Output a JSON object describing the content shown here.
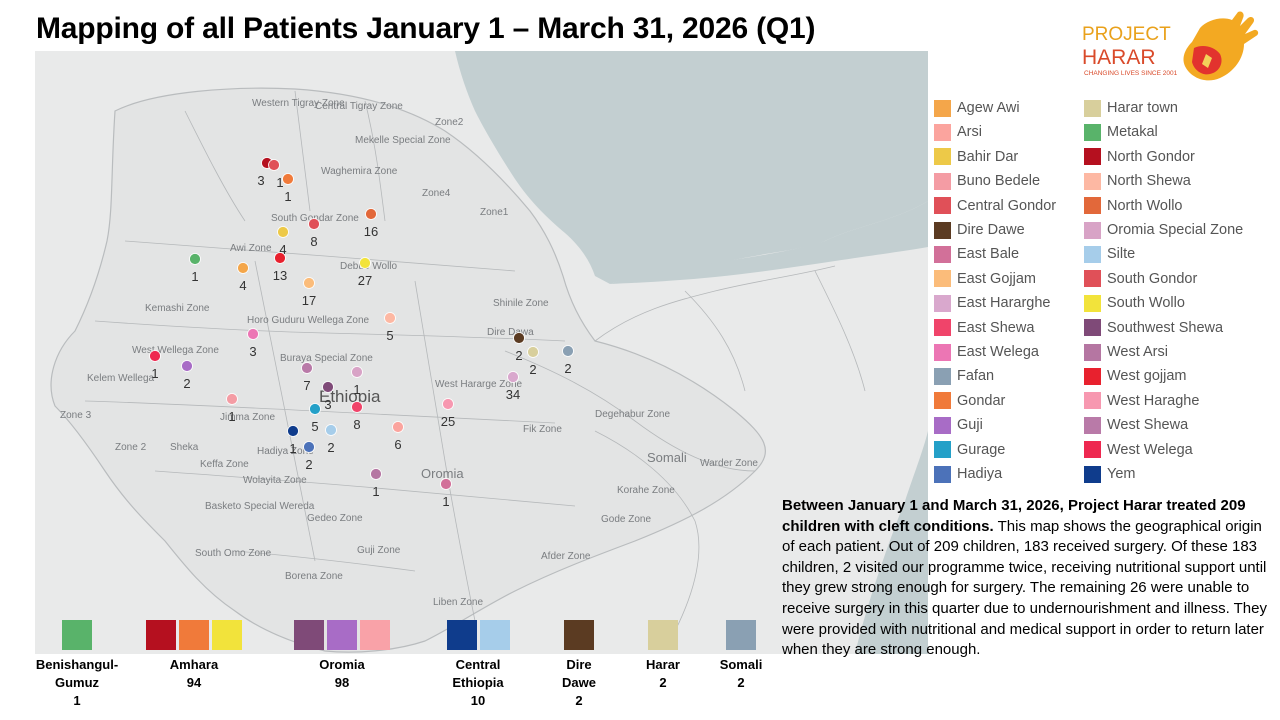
{
  "title": "Mapping of all Patients January 1 – March 31, 2026 (Q1)",
  "logo": {
    "line1": "PROJECT",
    "line2": "HARAR",
    "tagline": "CHANGING LIVES SINCE 2001"
  },
  "map": {
    "country_label": "Ethiopia",
    "region_labels": [
      "Western Tigray Zone",
      "Central Tigray Zone",
      "Zone2",
      "Mekelle Special Zone",
      "Waghemira Zone",
      "South Gondar Zone",
      "Awi Zone",
      "Debub Wollo",
      "Zone4",
      "Zone1",
      "Kemashi Zone",
      "Shinile Zone",
      "Dire Dawa",
      "Horo Guduru Wellega Zone",
      "West Wellega Zone",
      "Kelem Wellega",
      "Buraya Special Zone",
      "West Hararge Zone",
      "Zone 3",
      "Jimma Zone",
      "Zone 2",
      "Sheka",
      "Keffa Zone",
      "Hadiya Zone",
      "Wolayita Zone",
      "Fik Zone",
      "Degehabur Zone",
      "Somali",
      "Warder Zone",
      "Oromia",
      "Korahe Zone",
      "Gode Zone",
      "Basketo Special Wereda",
      "Gedeo Zone",
      "South Omo Zone",
      "Guji Zone",
      "Afder Zone",
      "Borena Zone",
      "Liben Zone"
    ],
    "markers": [
      {
        "zone": "North Gondor",
        "count": "3",
        "color": "#b5101f"
      },
      {
        "zone": "South Gondor",
        "count": "1",
        "color": "#e05058"
      },
      {
        "zone": "Gondar",
        "count": "1",
        "color": "#f07a3a"
      },
      {
        "zone": "Central Gondor",
        "count": "8",
        "color": "#e05058"
      },
      {
        "zone": "North Wollo",
        "count": "16",
        "color": "#e2683a"
      },
      {
        "zone": "Bahir Dar",
        "count": "4",
        "color": "#edc948"
      },
      {
        "zone": "West gojjam",
        "count": "13",
        "color": "#e8212e"
      },
      {
        "zone": "South Wollo",
        "count": "27",
        "color": "#f2e33b"
      },
      {
        "zone": "Metakal",
        "count": "1",
        "color": "#59b36a"
      },
      {
        "zone": "Agew Awi",
        "count": "4",
        "color": "#f4a64a"
      },
      {
        "zone": "East Gojjam",
        "count": "17",
        "color": "#fbbc7a"
      },
      {
        "zone": "North Shewa",
        "count": "5",
        "color": "#fdb8a3"
      },
      {
        "zone": "East Welega",
        "count": "3",
        "color": "#ec76b4"
      },
      {
        "zone": "West Welega",
        "count": "1",
        "color": "#ee2850"
      },
      {
        "zone": "Guji",
        "count": "2",
        "color": "#a86cc6"
      },
      {
        "zone": "West Shewa",
        "count": "7",
        "color": "#b97aa8"
      },
      {
        "zone": "Oromia Special Zone",
        "count": "1",
        "color": "#d8a3c6"
      },
      {
        "zone": "Southwest Shewa",
        "count": "3",
        "color": "#7f4a78"
      },
      {
        "zone": "Buno Bedele",
        "count": "1",
        "color": "#f49ca4"
      },
      {
        "zone": "East Shewa",
        "count": "8",
        "color": "#f0446a"
      },
      {
        "zone": "Gurage",
        "count": "5",
        "color": "#24a0c8"
      },
      {
        "zone": "Silte",
        "count": "2",
        "color": "#a6cdea"
      },
      {
        "zone": "Yem",
        "count": "1",
        "color": "#0f3c8c"
      },
      {
        "zone": "Hadiya",
        "count": "2",
        "color": "#4c72b9"
      },
      {
        "zone": "Arsi",
        "count": "6",
        "color": "#fba49e"
      },
      {
        "zone": "West Haraghe",
        "count": "25",
        "color": "#f798b0"
      },
      {
        "zone": "East Hararghe",
        "count": "34",
        "color": "#d9a8cd"
      },
      {
        "zone": "Dire Dawe",
        "count": "2",
        "color": "#5b3b22"
      },
      {
        "zone": "Harar town",
        "count": "2",
        "color": "#d8cf9c"
      },
      {
        "zone": "Fafan",
        "count": "2",
        "color": "#8aa0b3"
      },
      {
        "zone": "West Arsi",
        "count": "1",
        "color": "#b576a2"
      },
      {
        "zone": "East Bale",
        "count": "1",
        "color": "#d27099"
      }
    ]
  },
  "legend": [
    {
      "label": "Agew Awi",
      "color": "#f4a64a"
    },
    {
      "label": "Arsi",
      "color": "#fba49e"
    },
    {
      "label": "Bahir Dar",
      "color": "#edc948"
    },
    {
      "label": "Buno Bedele",
      "color": "#f49ca4"
    },
    {
      "label": "Central Gondor",
      "color": "#e05058"
    },
    {
      "label": "Dire Dawe",
      "color": "#5b3b22"
    },
    {
      "label": "East Bale",
      "color": "#d27099"
    },
    {
      "label": "East Gojjam",
      "color": "#fbbc7a"
    },
    {
      "label": "East Hararghe",
      "color": "#d9a8cd"
    },
    {
      "label": "East Shewa",
      "color": "#f0446a"
    },
    {
      "label": "East Welega",
      "color": "#ec76b4"
    },
    {
      "label": "Fafan",
      "color": "#8aa0b3"
    },
    {
      "label": "Gondar",
      "color": "#f07a3a"
    },
    {
      "label": "Guji",
      "color": "#a86cc6"
    },
    {
      "label": "Gurage",
      "color": "#24a0c8"
    },
    {
      "label": "Hadiya",
      "color": "#4c72b9"
    },
    {
      "label": "Harar town",
      "color": "#d8cf9c"
    },
    {
      "label": "Metakal",
      "color": "#59b36a"
    },
    {
      "label": "North Gondor",
      "color": "#b5101f"
    },
    {
      "label": "North Shewa",
      "color": "#fdb8a3"
    },
    {
      "label": "North Wollo",
      "color": "#e2683a"
    },
    {
      "label": "Oromia Special Zone",
      "color": "#d8a3c6"
    },
    {
      "label": "Silte",
      "color": "#a6cdea"
    },
    {
      "label": "South Gondor",
      "color": "#e05058"
    },
    {
      "label": "South Wollo",
      "color": "#f2e33b"
    },
    {
      "label": "Southwest Shewa",
      "color": "#7f4a78"
    },
    {
      "label": "West Arsi",
      "color": "#b576a2"
    },
    {
      "label": "West gojjam",
      "color": "#e8212e"
    },
    {
      "label": "West Haraghe",
      "color": "#f798b0"
    },
    {
      "label": "West Shewa",
      "color": "#b97aa8"
    },
    {
      "label": "West Welega",
      "color": "#ee2850"
    },
    {
      "label": "Yem",
      "color": "#0f3c8c"
    }
  ],
  "summary": {
    "bold": "Between January 1 and March 31, 2026, Project Harar treated 209 children with cleft conditions.",
    "text": " This map shows the geographical origin of each patient. Out of 209 children, 183 received surgery. Of these 183 children, 2 visited our programme twice, receiving nutritional support until they grew strong enough for surgery. The remaining 26 were unable to receive surgery in this quarter due to undernourishment and illness. They were provided with nutritional and medical support in order to return later when they are strong enough."
  },
  "regions": [
    {
      "name": "Benishangul-\nGumuz",
      "count": "1",
      "colors": [
        "#59b36a"
      ]
    },
    {
      "name": "Amhara",
      "count": "94",
      "colors": [
        "#b5101f",
        "#f07a3a",
        "#f2e33b"
      ]
    },
    {
      "name": "Oromia",
      "count": "98",
      "colors": [
        "#7f4a78",
        "#a86cc6",
        "#f9a2a8"
      ]
    },
    {
      "name": "Central\nEthiopia",
      "count": "10",
      "colors": [
        "#0f3c8c",
        "#a6cdea"
      ]
    },
    {
      "name": "Dire\nDawe",
      "count": "2",
      "colors": [
        "#5b3b22"
      ]
    },
    {
      "name": "Harar",
      "count": "2",
      "colors": [
        "#d8cf9c"
      ]
    },
    {
      "name": "Somali",
      "count": "2",
      "colors": [
        "#8aa0b3"
      ]
    }
  ]
}
